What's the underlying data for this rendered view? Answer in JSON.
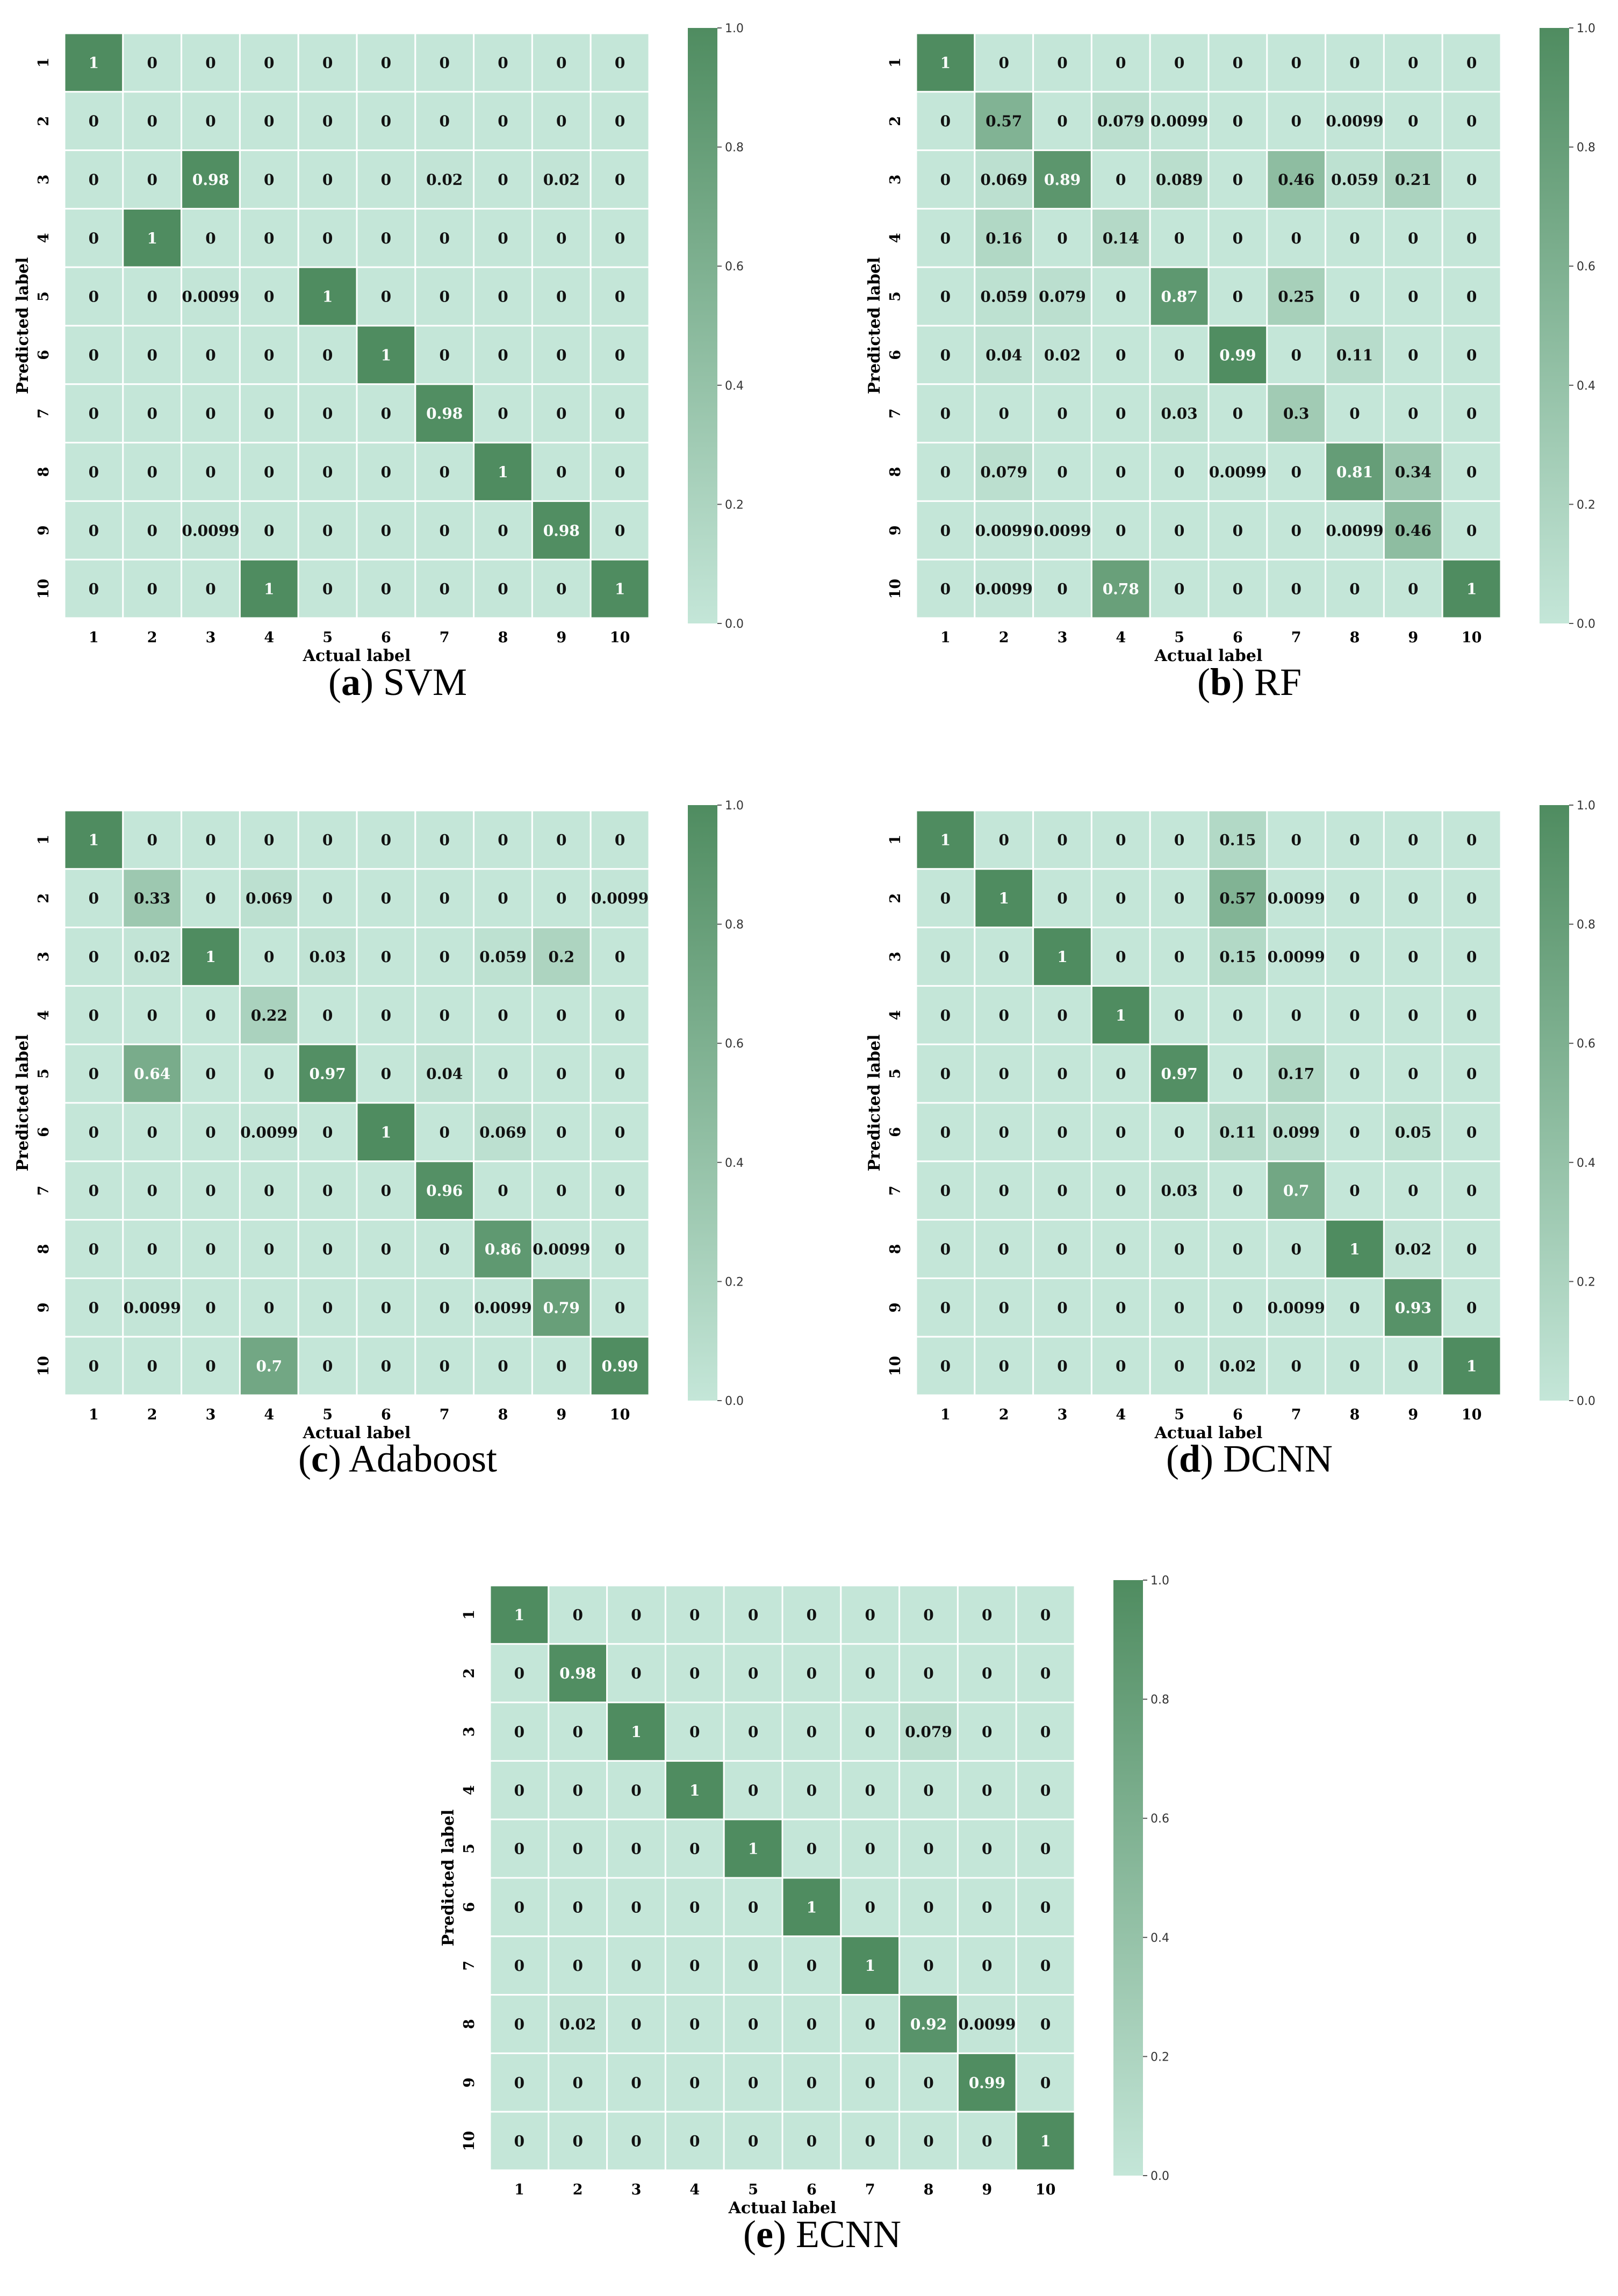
{
  "colors": {
    "low": "#c4e6d8",
    "high": "#4f8c60",
    "grid": "#ffffff",
    "text_dark": "#111111",
    "text_light": "#ffffff"
  },
  "chart_data": [
    {
      "type": "heatmap",
      "caption_letter": "a",
      "caption_text": "SVM",
      "xlabel": "Actual label",
      "ylabel": "Predicted label",
      "x_ticks": [
        "1",
        "2",
        "3",
        "4",
        "5",
        "6",
        "7",
        "8",
        "9",
        "10"
      ],
      "y_ticks": [
        "1",
        "2",
        "3",
        "4",
        "5",
        "6",
        "7",
        "8",
        "9",
        "10"
      ],
      "colorbar_ticks": [
        "0.0",
        "0.2",
        "0.4",
        "0.6",
        "0.8",
        "1.0"
      ],
      "vmin": 0,
      "vmax": 1,
      "values": [
        [
          1,
          0,
          0,
          0,
          0,
          0,
          0,
          0,
          0,
          0
        ],
        [
          0,
          0,
          0,
          0,
          0,
          0,
          0,
          0,
          0,
          0
        ],
        [
          0,
          0,
          0.98,
          0,
          0,
          0,
          0.02,
          0,
          0.02,
          0
        ],
        [
          0,
          1,
          0,
          0,
          0,
          0,
          0,
          0,
          0,
          0
        ],
        [
          0,
          0,
          0.0099,
          0,
          1,
          0,
          0,
          0,
          0,
          0
        ],
        [
          0,
          0,
          0,
          0,
          0,
          1,
          0,
          0,
          0,
          0
        ],
        [
          0,
          0,
          0,
          0,
          0,
          0,
          0.98,
          0,
          0,
          0
        ],
        [
          0,
          0,
          0,
          0,
          0,
          0,
          0,
          1,
          0,
          0
        ],
        [
          0,
          0,
          0.0099,
          0,
          0,
          0,
          0,
          0,
          0.98,
          0
        ],
        [
          0,
          0,
          0,
          1,
          0,
          0,
          0,
          0,
          0,
          1
        ]
      ]
    },
    {
      "type": "heatmap",
      "caption_letter": "b",
      "caption_text": "RF",
      "xlabel": "Actual label",
      "ylabel": "Predicted label",
      "x_ticks": [
        "1",
        "2",
        "3",
        "4",
        "5",
        "6",
        "7",
        "8",
        "9",
        "10"
      ],
      "y_ticks": [
        "1",
        "2",
        "3",
        "4",
        "5",
        "6",
        "7",
        "8",
        "9",
        "10"
      ],
      "colorbar_ticks": [
        "0.0",
        "0.2",
        "0.4",
        "0.6",
        "0.8",
        "1.0"
      ],
      "vmin": 0,
      "vmax": 1,
      "values": [
        [
          1,
          0,
          0,
          0,
          0,
          0,
          0,
          0,
          0,
          0
        ],
        [
          0,
          0.57,
          0,
          0.079,
          0.0099,
          0,
          0,
          0.0099,
          0,
          0
        ],
        [
          0,
          0.069,
          0.89,
          0,
          0.089,
          0,
          0.46,
          0.059,
          0.21,
          0
        ],
        [
          0,
          0.16,
          0,
          0.14,
          0,
          0,
          0,
          0,
          0,
          0
        ],
        [
          0,
          0.059,
          0.079,
          0,
          0.87,
          0,
          0.25,
          0,
          0,
          0
        ],
        [
          0,
          0.04,
          0.02,
          0,
          0,
          0.99,
          0,
          0.11,
          0,
          0
        ],
        [
          0,
          0,
          0,
          0,
          0.03,
          0,
          0.3,
          0,
          0,
          0
        ],
        [
          0,
          0.079,
          0,
          0,
          0,
          0.0099,
          0,
          0.81,
          0.34,
          0
        ],
        [
          0,
          0.0099,
          0.0099,
          0,
          0,
          0,
          0,
          0.0099,
          0.46,
          0
        ],
        [
          0,
          0.0099,
          0,
          0.78,
          0,
          0,
          0,
          0,
          0,
          1
        ]
      ]
    },
    {
      "type": "heatmap",
      "caption_letter": "c",
      "caption_text": "Adaboost",
      "xlabel": "Actual label",
      "ylabel": "Predicted label",
      "x_ticks": [
        "1",
        "2",
        "3",
        "4",
        "5",
        "6",
        "7",
        "8",
        "9",
        "10"
      ],
      "y_ticks": [
        "1",
        "2",
        "3",
        "4",
        "5",
        "6",
        "7",
        "8",
        "9",
        "10"
      ],
      "colorbar_ticks": [
        "0.0",
        "0.2",
        "0.4",
        "0.6",
        "0.8",
        "1.0"
      ],
      "vmin": 0,
      "vmax": 1,
      "values": [
        [
          1,
          0,
          0,
          0,
          0,
          0,
          0,
          0,
          0,
          0
        ],
        [
          0,
          0.33,
          0,
          0.069,
          0,
          0,
          0,
          0,
          0,
          0.0099
        ],
        [
          0,
          0.02,
          1,
          0,
          0.03,
          0,
          0,
          0.059,
          0.2,
          0
        ],
        [
          0,
          0,
          0,
          0.22,
          0,
          0,
          0,
          0,
          0,
          0
        ],
        [
          0,
          0.64,
          0,
          0,
          0.97,
          0,
          0.04,
          0,
          0,
          0
        ],
        [
          0,
          0,
          0,
          0.0099,
          0,
          1,
          0,
          0.069,
          0,
          0
        ],
        [
          0,
          0,
          0,
          0,
          0,
          0,
          0.96,
          0,
          0,
          0
        ],
        [
          0,
          0,
          0,
          0,
          0,
          0,
          0,
          0.86,
          0.0099,
          0
        ],
        [
          0,
          0.0099,
          0,
          0,
          0,
          0,
          0,
          0.0099,
          0.79,
          0
        ],
        [
          0,
          0,
          0,
          0.7,
          0,
          0,
          0,
          0,
          0,
          0.99
        ]
      ]
    },
    {
      "type": "heatmap",
      "caption_letter": "d",
      "caption_text": "DCNN",
      "xlabel": "Actual label",
      "ylabel": "Predicted label",
      "x_ticks": [
        "1",
        "2",
        "3",
        "4",
        "5",
        "6",
        "7",
        "8",
        "9",
        "10"
      ],
      "y_ticks": [
        "1",
        "2",
        "3",
        "4",
        "5",
        "6",
        "7",
        "8",
        "9",
        "10"
      ],
      "colorbar_ticks": [
        "0.0",
        "0.2",
        "0.4",
        "0.6",
        "0.8",
        "1.0"
      ],
      "vmin": 0,
      "vmax": 1,
      "values": [
        [
          1,
          0,
          0,
          0,
          0,
          0.15,
          0,
          0,
          0,
          0
        ],
        [
          0,
          1,
          0,
          0,
          0,
          0.57,
          0.0099,
          0,
          0,
          0
        ],
        [
          0,
          0,
          1,
          0,
          0,
          0.15,
          0.0099,
          0,
          0,
          0
        ],
        [
          0,
          0,
          0,
          1,
          0,
          0,
          0,
          0,
          0,
          0
        ],
        [
          0,
          0,
          0,
          0,
          0.97,
          0,
          0.17,
          0,
          0,
          0
        ],
        [
          0,
          0,
          0,
          0,
          0,
          0.11,
          0.099,
          0,
          0.05,
          0
        ],
        [
          0,
          0,
          0,
          0,
          0.03,
          0,
          0.7,
          0,
          0,
          0
        ],
        [
          0,
          0,
          0,
          0,
          0,
          0,
          0,
          1,
          0.02,
          0
        ],
        [
          0,
          0,
          0,
          0,
          0,
          0,
          0.0099,
          0,
          0.93,
          0
        ],
        [
          0,
          0,
          0,
          0,
          0,
          0.02,
          0,
          0,
          0,
          1
        ]
      ]
    },
    {
      "type": "heatmap",
      "caption_letter": "e",
      "caption_text": "ECNN",
      "xlabel": "Actual label",
      "ylabel": "Predicted label",
      "x_ticks": [
        "1",
        "2",
        "3",
        "4",
        "5",
        "6",
        "7",
        "8",
        "9",
        "10"
      ],
      "y_ticks": [
        "1",
        "2",
        "3",
        "4",
        "5",
        "6",
        "7",
        "8",
        "9",
        "10"
      ],
      "colorbar_ticks": [
        "0.0",
        "0.2",
        "0.4",
        "0.6",
        "0.8",
        "1.0"
      ],
      "vmin": 0,
      "vmax": 1,
      "values": [
        [
          1,
          0,
          0,
          0,
          0,
          0,
          0,
          0,
          0,
          0
        ],
        [
          0,
          0.98,
          0,
          0,
          0,
          0,
          0,
          0,
          0,
          0
        ],
        [
          0,
          0,
          1,
          0,
          0,
          0,
          0,
          0.079,
          0,
          0
        ],
        [
          0,
          0,
          0,
          1,
          0,
          0,
          0,
          0,
          0,
          0
        ],
        [
          0,
          0,
          0,
          0,
          1,
          0,
          0,
          0,
          0,
          0
        ],
        [
          0,
          0,
          0,
          0,
          0,
          1,
          0,
          0,
          0,
          0
        ],
        [
          0,
          0,
          0,
          0,
          0,
          0,
          1,
          0,
          0,
          0
        ],
        [
          0,
          0.02,
          0,
          0,
          0,
          0,
          0,
          0.92,
          0.0099,
          0
        ],
        [
          0,
          0,
          0,
          0,
          0,
          0,
          0,
          0,
          0.99,
          0
        ],
        [
          0,
          0,
          0,
          0,
          0,
          0,
          0,
          0,
          0,
          1
        ]
      ]
    }
  ]
}
